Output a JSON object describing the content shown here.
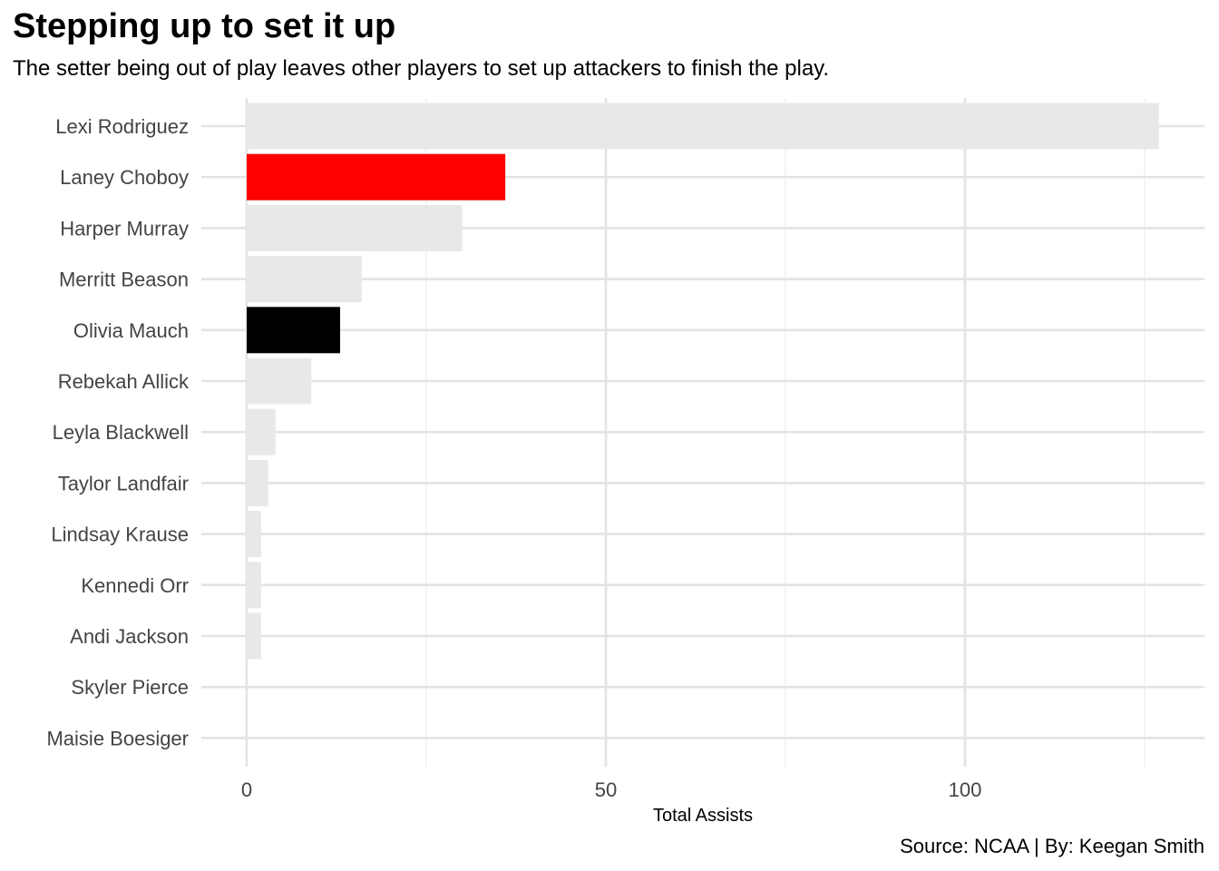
{
  "title": "Stepping up to set it up",
  "subtitle": "The setter being out of play leaves other players to set up attackers to finish the play.",
  "caption": "Source: NCAA | By: Keegan Smith",
  "chart_data": {
    "type": "bar",
    "orientation": "horizontal",
    "xlabel": "Total Assists",
    "ylabel": "",
    "xlim": [
      0,
      127
    ],
    "xticks": [
      0,
      50,
      100
    ],
    "xtick_labels": [
      "0",
      "50",
      "100"
    ],
    "grid": true,
    "categories": [
      "Lexi Rodriguez",
      "Laney Choboy",
      "Harper Murray",
      "Merritt Beason",
      "Olivia Mauch",
      "Rebekah Allick",
      "Leyla Blackwell",
      "Taylor Landfair",
      "Lindsay Krause",
      "Kennedi Orr",
      "Andi Jackson",
      "Skyler Pierce",
      "Maisie Boesiger"
    ],
    "values": [
      127,
      36,
      30,
      16,
      13,
      9,
      4,
      3,
      2,
      2,
      2,
      0,
      0
    ],
    "colors": [
      "#e8e8e8",
      "#ff0000",
      "#e8e8e8",
      "#e8e8e8",
      "#000000",
      "#e8e8e8",
      "#e8e8e8",
      "#e8e8e8",
      "#e8e8e8",
      "#e8e8e8",
      "#e8e8e8",
      "#e8e8e8",
      "#e8e8e8"
    ]
  }
}
